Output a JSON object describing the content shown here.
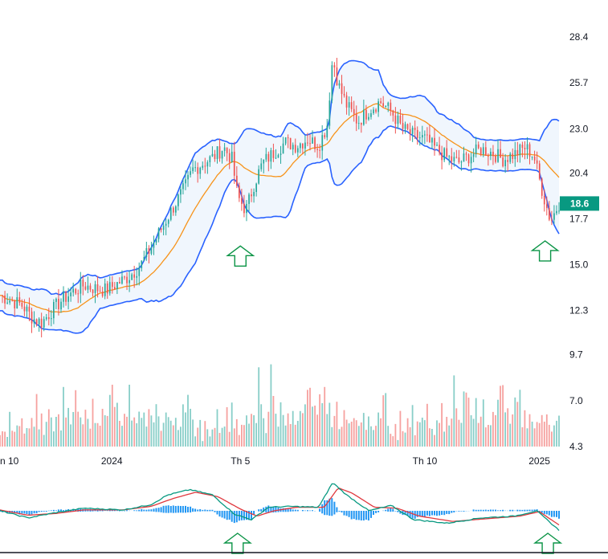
{
  "chart_data": {
    "type": "candlestick",
    "price_axis": {
      "ticks": [
        "28.4",
        "25.7",
        "23.0",
        "20.4",
        "17.7",
        "15.0",
        "12.3",
        "9.7",
        "7.0",
        "4.3"
      ],
      "min": 4.3,
      "max": 28.4
    },
    "current_price": {
      "label": "18.6",
      "value": 18.6,
      "color": "#089981"
    },
    "time_axis": {
      "labels": [
        "n 10",
        "2024",
        "Th 5",
        "Th 10",
        "2025"
      ],
      "positions": [
        0.0,
        0.2,
        0.43,
        0.76,
        0.965
      ]
    },
    "colors": {
      "up": "#26a69a",
      "down": "#ef5350",
      "bollinger": "#2962ff",
      "bollinger_fill": "#e3eefb",
      "ma": "#f7931a",
      "macd": "#089981",
      "signal": "#e0383e",
      "hist": "#2196f3",
      "arrow": "#0b9446"
    },
    "series_close": [
      {
        "x": 0.0,
        "y": 13.2
      },
      {
        "x": 0.02,
        "y": 12.9
      },
      {
        "x": 0.04,
        "y": 12.6
      },
      {
        "x": 0.06,
        "y": 11.8
      },
      {
        "x": 0.075,
        "y": 11.6
      },
      {
        "x": 0.09,
        "y": 12.2
      },
      {
        "x": 0.11,
        "y": 12.9
      },
      {
        "x": 0.13,
        "y": 13.4
      },
      {
        "x": 0.15,
        "y": 13.8
      },
      {
        "x": 0.17,
        "y": 13.6
      },
      {
        "x": 0.19,
        "y": 13.5
      },
      {
        "x": 0.21,
        "y": 13.9
      },
      {
        "x": 0.23,
        "y": 14.3
      },
      {
        "x": 0.25,
        "y": 14.9
      },
      {
        "x": 0.27,
        "y": 16.0
      },
      {
        "x": 0.29,
        "y": 17.2
      },
      {
        "x": 0.31,
        "y": 18.4
      },
      {
        "x": 0.33,
        "y": 19.5
      },
      {
        "x": 0.345,
        "y": 20.6
      },
      {
        "x": 0.36,
        "y": 20.9
      },
      {
        "x": 0.38,
        "y": 21.3
      },
      {
        "x": 0.4,
        "y": 21.9
      },
      {
        "x": 0.415,
        "y": 21.2
      },
      {
        "x": 0.425,
        "y": 19.0
      },
      {
        "x": 0.44,
        "y": 18.2
      },
      {
        "x": 0.455,
        "y": 19.8
      },
      {
        "x": 0.47,
        "y": 21.0
      },
      {
        "x": 0.49,
        "y": 21.6
      },
      {
        "x": 0.51,
        "y": 22.2
      },
      {
        "x": 0.53,
        "y": 22.0
      },
      {
        "x": 0.55,
        "y": 22.4
      },
      {
        "x": 0.57,
        "y": 22.0
      },
      {
        "x": 0.585,
        "y": 23.2
      },
      {
        "x": 0.595,
        "y": 27.2
      },
      {
        "x": 0.605,
        "y": 25.6
      },
      {
        "x": 0.62,
        "y": 24.4
      },
      {
        "x": 0.64,
        "y": 23.4
      },
      {
        "x": 0.66,
        "y": 24.1
      },
      {
        "x": 0.68,
        "y": 24.6
      },
      {
        "x": 0.7,
        "y": 24.0
      },
      {
        "x": 0.72,
        "y": 23.0
      },
      {
        "x": 0.74,
        "y": 22.6
      },
      {
        "x": 0.76,
        "y": 22.4
      },
      {
        "x": 0.78,
        "y": 21.8
      },
      {
        "x": 0.8,
        "y": 21.3
      },
      {
        "x": 0.82,
        "y": 21.0
      },
      {
        "x": 0.84,
        "y": 21.4
      },
      {
        "x": 0.86,
        "y": 21.8
      },
      {
        "x": 0.88,
        "y": 21.6
      },
      {
        "x": 0.9,
        "y": 21.2
      },
      {
        "x": 0.92,
        "y": 21.5
      },
      {
        "x": 0.94,
        "y": 21.9
      },
      {
        "x": 0.955,
        "y": 21.4
      },
      {
        "x": 0.965,
        "y": 20.0
      },
      {
        "x": 0.975,
        "y": 18.7
      },
      {
        "x": 0.985,
        "y": 17.6
      },
      {
        "x": 1.0,
        "y": 18.6
      }
    ],
    "volume_relative": [
      0.15,
      0.22,
      0.3,
      0.12,
      0.4,
      0.25,
      0.18,
      0.33,
      0.28,
      0.5,
      0.2,
      0.35,
      0.27,
      0.45,
      0.3,
      0.6,
      0.22,
      0.38,
      0.25,
      0.3,
      0.42,
      0.55,
      0.3,
      0.65,
      0.4,
      0.35,
      0.9,
      0.5,
      0.44,
      0.28,
      0.7,
      0.95,
      0.6,
      0.4,
      0.32,
      0.55,
      0.48,
      0.38,
      0.6,
      0.35,
      0.42,
      0.3,
      0.5,
      0.45,
      0.55,
      0.92,
      1.0,
      0.7,
      0.6,
      0.5,
      0.45,
      0.6,
      0.52,
      0.7,
      0.4,
      0.55,
      0.35,
      0.45,
      0.5,
      0.38,
      0.3,
      0.42,
      0.36,
      0.48,
      0.55,
      0.4,
      0.33,
      0.28,
      0.45,
      0.38,
      0.3,
      0.35,
      0.42,
      0.3,
      0.4,
      0.5,
      0.62,
      0.85,
      0.7,
      0.45
    ],
    "macd": [
      {
        "x": 0.0,
        "y": 0.0
      },
      {
        "x": 0.05,
        "y": -0.4
      },
      {
        "x": 0.1,
        "y": -0.1
      },
      {
        "x": 0.15,
        "y": 0.15
      },
      {
        "x": 0.22,
        "y": 0.05
      },
      {
        "x": 0.27,
        "y": 0.35
      },
      {
        "x": 0.3,
        "y": 0.9
      },
      {
        "x": 0.34,
        "y": 1.2
      },
      {
        "x": 0.38,
        "y": 0.9
      },
      {
        "x": 0.42,
        "y": -0.2
      },
      {
        "x": 0.45,
        "y": -0.5
      },
      {
        "x": 0.48,
        "y": 0.2
      },
      {
        "x": 0.52,
        "y": 0.25
      },
      {
        "x": 0.57,
        "y": 0.2
      },
      {
        "x": 0.595,
        "y": 1.6
      },
      {
        "x": 0.62,
        "y": 0.9
      },
      {
        "x": 0.66,
        "y": 0.0
      },
      {
        "x": 0.7,
        "y": 0.3
      },
      {
        "x": 0.74,
        "y": -0.5
      },
      {
        "x": 0.8,
        "y": -0.7
      },
      {
        "x": 0.86,
        "y": -0.4
      },
      {
        "x": 0.92,
        "y": -0.3
      },
      {
        "x": 0.96,
        "y": 0.0
      },
      {
        "x": 1.0,
        "y": -1.1
      }
    ],
    "signal": [
      {
        "x": 0.0,
        "y": 0.05
      },
      {
        "x": 0.05,
        "y": -0.25
      },
      {
        "x": 0.1,
        "y": -0.15
      },
      {
        "x": 0.15,
        "y": 0.05
      },
      {
        "x": 0.22,
        "y": 0.05
      },
      {
        "x": 0.27,
        "y": 0.25
      },
      {
        "x": 0.31,
        "y": 0.7
      },
      {
        "x": 0.35,
        "y": 1.05
      },
      {
        "x": 0.39,
        "y": 0.8
      },
      {
        "x": 0.43,
        "y": 0.1
      },
      {
        "x": 0.46,
        "y": -0.3
      },
      {
        "x": 0.49,
        "y": 0.0
      },
      {
        "x": 0.53,
        "y": 0.2
      },
      {
        "x": 0.58,
        "y": 0.2
      },
      {
        "x": 0.605,
        "y": 1.3
      },
      {
        "x": 0.63,
        "y": 1.0
      },
      {
        "x": 0.67,
        "y": 0.2
      },
      {
        "x": 0.71,
        "y": 0.15
      },
      {
        "x": 0.75,
        "y": -0.3
      },
      {
        "x": 0.81,
        "y": -0.6
      },
      {
        "x": 0.87,
        "y": -0.45
      },
      {
        "x": 0.93,
        "y": -0.3
      },
      {
        "x": 0.965,
        "y": -0.05
      },
      {
        "x": 1.0,
        "y": -0.8
      }
    ],
    "arrows": [
      {
        "pane": "price",
        "x": 0.43,
        "price": 16.1
      },
      {
        "pane": "price",
        "x": 0.975,
        "price": 16.4
      },
      {
        "pane": "macd",
        "x": 0.425
      },
      {
        "pane": "macd",
        "x": 0.98
      }
    ]
  }
}
